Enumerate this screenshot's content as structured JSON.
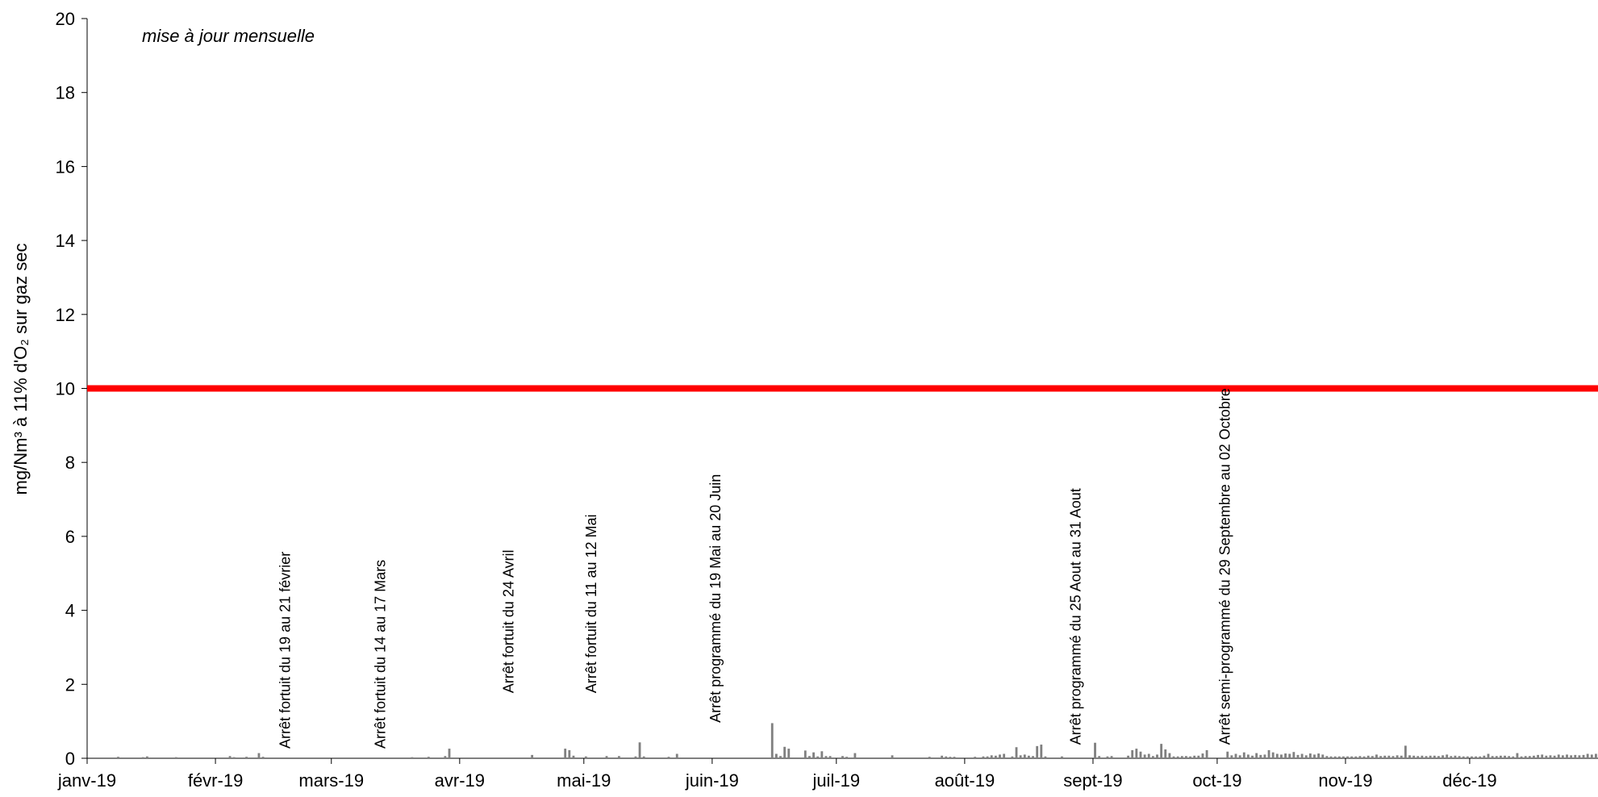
{
  "chart_data": {
    "type": "bar",
    "title": "",
    "ylabel": "mg/Nm³ à 11% d'O₂ sur gaz sec",
    "xlabel": "",
    "ylim": [
      0,
      20
    ],
    "yticks": [
      0,
      2,
      4,
      6,
      8,
      10,
      12,
      14,
      16,
      18,
      20
    ],
    "xlim": [
      "2019-01-01",
      "2020-01-01"
    ],
    "x_tick_labels": [
      {
        "date": "2019-01-01",
        "label": "janv-19"
      },
      {
        "date": "2019-02-01",
        "label": "févr-19"
      },
      {
        "date": "2019-03-01",
        "label": "mars-19"
      },
      {
        "date": "2019-04-01",
        "label": "avr-19"
      },
      {
        "date": "2019-05-01",
        "label": "mai-19"
      },
      {
        "date": "2019-06-01",
        "label": "juin-19"
      },
      {
        "date": "2019-07-01",
        "label": "juil-19"
      },
      {
        "date": "2019-08-01",
        "label": "août-19"
      },
      {
        "date": "2019-09-01",
        "label": "sept-19"
      },
      {
        "date": "2019-10-01",
        "label": "oct-19"
      },
      {
        "date": "2019-11-01",
        "label": "nov-19"
      },
      {
        "date": "2019-12-01",
        "label": "déc-19"
      }
    ],
    "note": "mise à jour mensuelle",
    "limit_line": {
      "value": 10,
      "color": "#ff0000"
    },
    "bar_color": "#808080",
    "series": [
      {
        "points": [
          {
            "x": "2019-01-08",
            "y": 0.04
          },
          {
            "x": "2019-01-14",
            "y": 0.03
          },
          {
            "x": "2019-01-15",
            "y": 0.05
          },
          {
            "x": "2019-01-22",
            "y": 0.03
          },
          {
            "x": "2019-02-04",
            "y": 0.06
          },
          {
            "x": "2019-02-05",
            "y": 0.03
          },
          {
            "x": "2019-02-08",
            "y": 0.04
          },
          {
            "x": "2019-02-11",
            "y": 0.14
          },
          {
            "x": "2019-02-12",
            "y": 0.04
          },
          {
            "x": "2019-03-20",
            "y": 0.03
          },
          {
            "x": "2019-03-24",
            "y": 0.04
          },
          {
            "x": "2019-03-28",
            "y": 0.06
          },
          {
            "x": "2019-03-29",
            "y": 0.26
          },
          {
            "x": "2019-04-18",
            "y": 0.09
          },
          {
            "x": "2019-04-26",
            "y": 0.26
          },
          {
            "x": "2019-04-27",
            "y": 0.22
          },
          {
            "x": "2019-04-28",
            "y": 0.07
          },
          {
            "x": "2019-05-01",
            "y": 0.05
          },
          {
            "x": "2019-05-06",
            "y": 0.06
          },
          {
            "x": "2019-05-09",
            "y": 0.06
          },
          {
            "x": "2019-05-13",
            "y": 0.05
          },
          {
            "x": "2019-05-14",
            "y": 0.43
          },
          {
            "x": "2019-05-15",
            "y": 0.05
          },
          {
            "x": "2019-05-21",
            "y": 0.04
          },
          {
            "x": "2019-05-23",
            "y": 0.12
          },
          {
            "x": "2019-06-15",
            "y": 0.95
          },
          {
            "x": "2019-06-16",
            "y": 0.12
          },
          {
            "x": "2019-06-17",
            "y": 0.06
          },
          {
            "x": "2019-06-18",
            "y": 0.31
          },
          {
            "x": "2019-06-19",
            "y": 0.26
          },
          {
            "x": "2019-06-23",
            "y": 0.21
          },
          {
            "x": "2019-06-24",
            "y": 0.06
          },
          {
            "x": "2019-06-25",
            "y": 0.16
          },
          {
            "x": "2019-06-26",
            "y": 0.05
          },
          {
            "x": "2019-06-27",
            "y": 0.19
          },
          {
            "x": "2019-06-28",
            "y": 0.06
          },
          {
            "x": "2019-06-29",
            "y": 0.06
          },
          {
            "x": "2019-07-02",
            "y": 0.06
          },
          {
            "x": "2019-07-03",
            "y": 0.04
          },
          {
            "x": "2019-07-05",
            "y": 0.14
          },
          {
            "x": "2019-07-14",
            "y": 0.08
          },
          {
            "x": "2019-07-23",
            "y": 0.04
          },
          {
            "x": "2019-07-26",
            "y": 0.07
          },
          {
            "x": "2019-07-27",
            "y": 0.05
          },
          {
            "x": "2019-07-28",
            "y": 0.04
          },
          {
            "x": "2019-07-29",
            "y": 0.04
          },
          {
            "x": "2019-08-03",
            "y": 0.04
          },
          {
            "x": "2019-08-05",
            "y": 0.05
          },
          {
            "x": "2019-08-06",
            "y": 0.05
          },
          {
            "x": "2019-08-07",
            "y": 0.08
          },
          {
            "x": "2019-08-08",
            "y": 0.07
          },
          {
            "x": "2019-08-09",
            "y": 0.1
          },
          {
            "x": "2019-08-10",
            "y": 0.12
          },
          {
            "x": "2019-08-12",
            "y": 0.05
          },
          {
            "x": "2019-08-13",
            "y": 0.3
          },
          {
            "x": "2019-08-14",
            "y": 0.08
          },
          {
            "x": "2019-08-15",
            "y": 0.1
          },
          {
            "x": "2019-08-16",
            "y": 0.07
          },
          {
            "x": "2019-08-17",
            "y": 0.06
          },
          {
            "x": "2019-08-18",
            "y": 0.33
          },
          {
            "x": "2019-08-19",
            "y": 0.37
          },
          {
            "x": "2019-08-20",
            "y": 0.05
          },
          {
            "x": "2019-08-24",
            "y": 0.05
          },
          {
            "x": "2019-09-01",
            "y": 0.42
          },
          {
            "x": "2019-09-02",
            "y": 0.06
          },
          {
            "x": "2019-09-04",
            "y": 0.05
          },
          {
            "x": "2019-09-05",
            "y": 0.06
          },
          {
            "x": "2019-09-09",
            "y": 0.07
          },
          {
            "x": "2019-09-10",
            "y": 0.22
          },
          {
            "x": "2019-09-11",
            "y": 0.26
          },
          {
            "x": "2019-09-12",
            "y": 0.18
          },
          {
            "x": "2019-09-13",
            "y": 0.1
          },
          {
            "x": "2019-09-14",
            "y": 0.12
          },
          {
            "x": "2019-09-15",
            "y": 0.06
          },
          {
            "x": "2019-09-16",
            "y": 0.1
          },
          {
            "x": "2019-09-17",
            "y": 0.39
          },
          {
            "x": "2019-09-18",
            "y": 0.24
          },
          {
            "x": "2019-09-19",
            "y": 0.14
          },
          {
            "x": "2019-09-20",
            "y": 0.05
          },
          {
            "x": "2019-09-21",
            "y": 0.05
          },
          {
            "x": "2019-09-22",
            "y": 0.06
          },
          {
            "x": "2019-09-23",
            "y": 0.06
          },
          {
            "x": "2019-09-24",
            "y": 0.05
          },
          {
            "x": "2019-09-25",
            "y": 0.07
          },
          {
            "x": "2019-09-26",
            "y": 0.07
          },
          {
            "x": "2019-09-27",
            "y": 0.13
          },
          {
            "x": "2019-09-28",
            "y": 0.22
          },
          {
            "x": "2019-10-03",
            "y": 0.18
          },
          {
            "x": "2019-10-04",
            "y": 0.08
          },
          {
            "x": "2019-10-05",
            "y": 0.12
          },
          {
            "x": "2019-10-06",
            "y": 0.08
          },
          {
            "x": "2019-10-07",
            "y": 0.16
          },
          {
            "x": "2019-10-08",
            "y": 0.1
          },
          {
            "x": "2019-10-09",
            "y": 0.07
          },
          {
            "x": "2019-10-10",
            "y": 0.14
          },
          {
            "x": "2019-10-11",
            "y": 0.09
          },
          {
            "x": "2019-10-12",
            "y": 0.1
          },
          {
            "x": "2019-10-13",
            "y": 0.22
          },
          {
            "x": "2019-10-14",
            "y": 0.16
          },
          {
            "x": "2019-10-15",
            "y": 0.12
          },
          {
            "x": "2019-10-16",
            "y": 0.1
          },
          {
            "x": "2019-10-17",
            "y": 0.13
          },
          {
            "x": "2019-10-18",
            "y": 0.12
          },
          {
            "x": "2019-10-19",
            "y": 0.17
          },
          {
            "x": "2019-10-20",
            "y": 0.09
          },
          {
            "x": "2019-10-21",
            "y": 0.12
          },
          {
            "x": "2019-10-22",
            "y": 0.08
          },
          {
            "x": "2019-10-23",
            "y": 0.13
          },
          {
            "x": "2019-10-24",
            "y": 0.1
          },
          {
            "x": "2019-10-25",
            "y": 0.13
          },
          {
            "x": "2019-10-26",
            "y": 0.1
          },
          {
            "x": "2019-10-27",
            "y": 0.06
          },
          {
            "x": "2019-10-28",
            "y": 0.05
          },
          {
            "x": "2019-10-29",
            "y": 0.05
          },
          {
            "x": "2019-10-30",
            "y": 0.05
          },
          {
            "x": "2019-10-31",
            "y": 0.05
          },
          {
            "x": "2019-11-01",
            "y": 0.05
          },
          {
            "x": "2019-11-02",
            "y": 0.05
          },
          {
            "x": "2019-11-03",
            "y": 0.05
          },
          {
            "x": "2019-11-04",
            "y": 0.06
          },
          {
            "x": "2019-11-05",
            "y": 0.05
          },
          {
            "x": "2019-11-06",
            "y": 0.07
          },
          {
            "x": "2019-11-07",
            "y": 0.06
          },
          {
            "x": "2019-11-08",
            "y": 0.1
          },
          {
            "x": "2019-11-09",
            "y": 0.06
          },
          {
            "x": "2019-11-10",
            "y": 0.07
          },
          {
            "x": "2019-11-11",
            "y": 0.07
          },
          {
            "x": "2019-11-12",
            "y": 0.06
          },
          {
            "x": "2019-11-13",
            "y": 0.08
          },
          {
            "x": "2019-11-14",
            "y": 0.07
          },
          {
            "x": "2019-11-15",
            "y": 0.34
          },
          {
            "x": "2019-11-16",
            "y": 0.08
          },
          {
            "x": "2019-11-17",
            "y": 0.07
          },
          {
            "x": "2019-11-18",
            "y": 0.06
          },
          {
            "x": "2019-11-19",
            "y": 0.07
          },
          {
            "x": "2019-11-20",
            "y": 0.06
          },
          {
            "x": "2019-11-21",
            "y": 0.07
          },
          {
            "x": "2019-11-22",
            "y": 0.07
          },
          {
            "x": "2019-11-23",
            "y": 0.06
          },
          {
            "x": "2019-11-24",
            "y": 0.08
          },
          {
            "x": "2019-11-25",
            "y": 0.1
          },
          {
            "x": "2019-11-26",
            "y": 0.06
          },
          {
            "x": "2019-11-27",
            "y": 0.07
          },
          {
            "x": "2019-11-28",
            "y": 0.06
          },
          {
            "x": "2019-11-29",
            "y": 0.05
          },
          {
            "x": "2019-11-30",
            "y": 0.05
          },
          {
            "x": "2019-12-01",
            "y": 0.05
          },
          {
            "x": "2019-12-02",
            "y": 0.05
          },
          {
            "x": "2019-12-03",
            "y": 0.05
          },
          {
            "x": "2019-12-04",
            "y": 0.07
          },
          {
            "x": "2019-12-05",
            "y": 0.12
          },
          {
            "x": "2019-12-06",
            "y": 0.06
          },
          {
            "x": "2019-12-07",
            "y": 0.06
          },
          {
            "x": "2019-12-08",
            "y": 0.07
          },
          {
            "x": "2019-12-09",
            "y": 0.07
          },
          {
            "x": "2019-12-10",
            "y": 0.06
          },
          {
            "x": "2019-12-11",
            "y": 0.05
          },
          {
            "x": "2019-12-12",
            "y": 0.14
          },
          {
            "x": "2019-12-13",
            "y": 0.05
          },
          {
            "x": "2019-12-14",
            "y": 0.06
          },
          {
            "x": "2019-12-15",
            "y": 0.06
          },
          {
            "x": "2019-12-16",
            "y": 0.07
          },
          {
            "x": "2019-12-17",
            "y": 0.09
          },
          {
            "x": "2019-12-18",
            "y": 0.1
          },
          {
            "x": "2019-12-19",
            "y": 0.07
          },
          {
            "x": "2019-12-20",
            "y": 0.08
          },
          {
            "x": "2019-12-21",
            "y": 0.07
          },
          {
            "x": "2019-12-22",
            "y": 0.1
          },
          {
            "x": "2019-12-23",
            "y": 0.08
          },
          {
            "x": "2019-12-24",
            "y": 0.1
          },
          {
            "x": "2019-12-25",
            "y": 0.08
          },
          {
            "x": "2019-12-26",
            "y": 0.09
          },
          {
            "x": "2019-12-27",
            "y": 0.08
          },
          {
            "x": "2019-12-28",
            "y": 0.09
          },
          {
            "x": "2019-12-29",
            "y": 0.12
          },
          {
            "x": "2019-12-30",
            "y": 0.1
          },
          {
            "x": "2019-12-31",
            "y": 0.12
          }
        ]
      }
    ],
    "annotations": [
      {
        "x": "2019-02-19",
        "y": 0,
        "text": "Arrêt fortuit du 19 au 21 février"
      },
      {
        "x": "2019-03-14",
        "y": 0,
        "text": "Arrêt fortuit du 14 au 17 Mars"
      },
      {
        "x": "2019-04-14",
        "y": 1.5,
        "text": "Arrêt fortuit du 24 Avril"
      },
      {
        "x": "2019-05-04",
        "y": 1.5,
        "text": "Arrêt fortuit du 11 au 12 Mai"
      },
      {
        "x": "2019-06-03",
        "y": 0.7,
        "text": "Arrêt programmé du 19 Mai au 20 Juin"
      },
      {
        "x": "2019-08-29",
        "y": 0.1,
        "text": "Arrêt programmé du 25 Aout au 31 Aout"
      },
      {
        "x": "2019-10-04",
        "y": 0.1,
        "text": "Arrêt semi-programmé du 29 Septembre au 02 Octobre"
      }
    ]
  }
}
